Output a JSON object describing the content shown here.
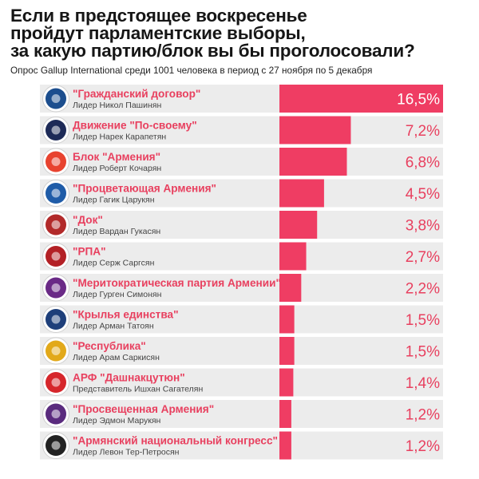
{
  "chart_data": {
    "type": "bar",
    "orientation": "horizontal",
    "title": "Если в предстоящее воскресенье\nпройдут парламентские выборы,\nза какую партию/блок вы бы проголосовали?",
    "subtitle": "Опрос Gallup International среди 1001 человека в период с 27 ноября по 5 декабря",
    "unit": "%",
    "max_value": 16.5,
    "colors": {
      "bar": "#ef3d63",
      "row_band": "#ececec",
      "label": "#e8405f"
    },
    "items": [
      {
        "name": "\"Гражданский договор\"",
        "leader": "Лидер Никол Пашинян",
        "value": 16.5,
        "label": "16,5%",
        "logo": "civil-contract-logo",
        "logo_color": "#1c4e8e"
      },
      {
        "name": "Движение \"По-своему\"",
        "leader": "Лидер Нарек Карапетян",
        "value": 7.2,
        "label": "7,2%",
        "logo": "hashtag-logo",
        "logo_color": "#1d2a57"
      },
      {
        "name": "Блок \"Армения\"",
        "leader": "Лидер Роберт Кочарян",
        "value": 6.8,
        "label": "6,8%",
        "logo": "chevron-logo",
        "logo_color": "#e8432f"
      },
      {
        "name": "\"Процветающая Армения\"",
        "leader": "Лидер Гагик Царукян",
        "value": 4.5,
        "label": "4,5%",
        "logo": "swoosh-logo",
        "logo_color": "#1f5ca8"
      },
      {
        "name": "\"Док\"",
        "leader": "Лидер Вардан Гукасян",
        "value": 3.8,
        "label": "3,8%",
        "logo": "shield-logo",
        "logo_color": "#b22a2a"
      },
      {
        "name": "\"РПА\"",
        "leader": "Лидер Серж Саргсян",
        "value": 2.7,
        "label": "2,7%",
        "logo": "eagle-logo",
        "logo_color": "#b32025"
      },
      {
        "name": "\"Меритократическая партия Армении\"",
        "leader": "Лидер Гурген Симонян",
        "value": 2.2,
        "label": "2,2%",
        "logo": "lion-logo",
        "logo_color": "#6a2a86"
      },
      {
        "name": "\"Крылья единства\"",
        "leader": "Лидер Арман Татоян",
        "value": 1.5,
        "label": "1,5%",
        "logo": "wings-logo",
        "logo_color": "#1e3f7a"
      },
      {
        "name": "\"Республика\"",
        "leader": "Лидер Арам Саркисян",
        "value": 1.5,
        "label": "1,5%",
        "logo": "knot-logo",
        "logo_color": "#e2a91a"
      },
      {
        "name": "АРФ \"Дашнакцутюн\"",
        "leader": "Представитель Ишхан Сагателян",
        "value": 1.4,
        "label": "1,4%",
        "logo": "arf-logo",
        "logo_color": "#d6262b"
      },
      {
        "name": "\"Просвещенная Армения\"",
        "leader": "Лидер Эдмон Марукян",
        "value": 1.2,
        "label": "1,2%",
        "logo": "torch-logo",
        "logo_color": "#5a2b7e"
      },
      {
        "name": "\"Армянский национальный конгресс\"",
        "leader": "Лидер Левон Тер-Петросян",
        "value": 1.2,
        "label": "1,2%",
        "logo": "spiral-logo",
        "logo_color": "#222222"
      }
    ]
  }
}
